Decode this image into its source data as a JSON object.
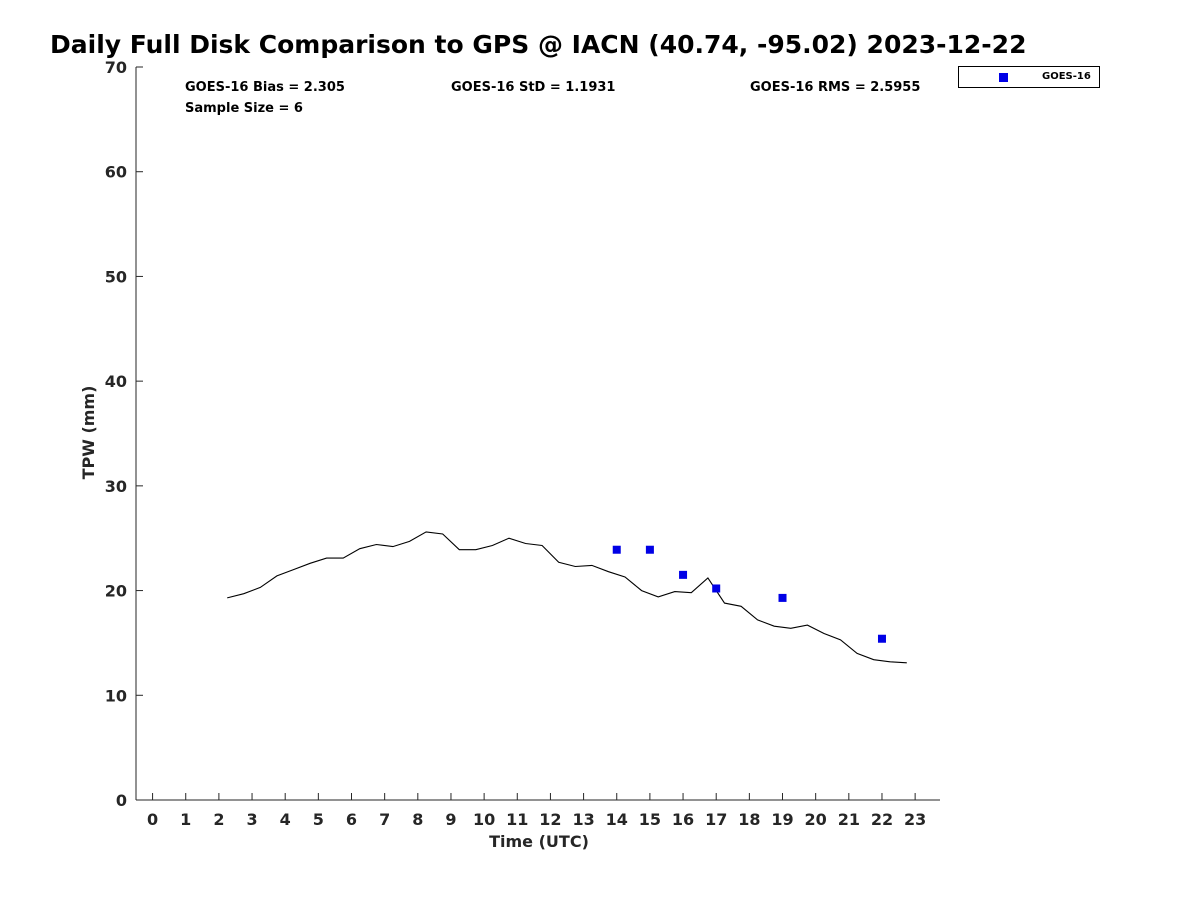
{
  "title": "Daily Full Disk Comparison to GPS @ IACN (40.74, -95.02) 2023-12-22",
  "stats": {
    "bias": "GOES-16 Bias = 2.305",
    "std": "GOES-16 StD = 1.1931",
    "rms": "GOES-16 RMS = 2.5955",
    "sample": "Sample Size = 6"
  },
  "legend": {
    "label": "GOES-16",
    "color": "#0000e6"
  },
  "chart_data": {
    "type": "scatter",
    "xlabel": "Time (UTC)",
    "ylabel": "TPW (mm)",
    "xlim": [
      -0.5,
      23.75
    ],
    "ylim": [
      0,
      70
    ],
    "xticks": [
      0,
      1,
      2,
      3,
      4,
      5,
      6,
      7,
      8,
      9,
      10,
      11,
      12,
      13,
      14,
      15,
      16,
      17,
      18,
      19,
      20,
      21,
      22,
      23
    ],
    "yticks": [
      0,
      10,
      20,
      30,
      40,
      50,
      60,
      70
    ],
    "series": [
      {
        "type": "line",
        "color": "#000000",
        "points": [
          [
            2.25,
            19.3
          ],
          [
            2.75,
            19.7
          ],
          [
            3.25,
            20.3
          ],
          [
            3.75,
            21.4
          ],
          [
            4.25,
            22.0
          ],
          [
            4.75,
            22.6
          ],
          [
            5.25,
            23.1
          ],
          [
            5.75,
            23.1
          ],
          [
            6.25,
            24.0
          ],
          [
            6.75,
            24.4
          ],
          [
            7.25,
            24.2
          ],
          [
            7.75,
            24.7
          ],
          [
            8.25,
            25.6
          ],
          [
            8.75,
            25.4
          ],
          [
            9.25,
            23.9
          ],
          [
            9.75,
            23.9
          ],
          [
            10.25,
            24.3
          ],
          [
            10.75,
            25.0
          ],
          [
            11.25,
            24.5
          ],
          [
            11.75,
            24.3
          ],
          [
            12.25,
            22.7
          ],
          [
            12.75,
            22.3
          ],
          [
            13.25,
            22.4
          ],
          [
            13.75,
            21.8
          ],
          [
            14.25,
            21.3
          ],
          [
            14.75,
            20.0
          ],
          [
            15.25,
            19.4
          ],
          [
            15.75,
            19.9
          ],
          [
            16.25,
            19.8
          ],
          [
            16.75,
            21.2
          ],
          [
            17.25,
            18.8
          ],
          [
            17.75,
            18.5
          ],
          [
            18.25,
            17.2
          ],
          [
            18.75,
            16.6
          ],
          [
            19.25,
            16.4
          ],
          [
            19.75,
            16.7
          ],
          [
            20.25,
            15.9
          ],
          [
            20.75,
            15.3
          ],
          [
            21.25,
            14.0
          ],
          [
            21.75,
            13.4
          ],
          [
            22.25,
            13.2
          ],
          [
            22.75,
            13.1
          ]
        ]
      },
      {
        "name": "GOES-16",
        "type": "scatter",
        "color": "#0000e6",
        "points": [
          [
            14,
            23.9
          ],
          [
            15,
            23.9
          ],
          [
            16,
            21.5
          ],
          [
            17,
            20.2
          ],
          [
            19,
            19.3
          ],
          [
            22,
            15.4
          ]
        ]
      }
    ]
  }
}
